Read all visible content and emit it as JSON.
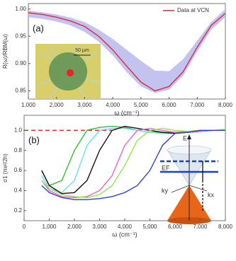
{
  "chart_data": [
    {
      "type": "line",
      "panel_label": "(a)",
      "x_label": "ω (cm⁻¹)",
      "y_label": "R(ω)/RBM(ω)",
      "inset_scale_label": "50 μm",
      "legend": "upper right",
      "x": [
        1000,
        1500,
        2000,
        2500,
        3000,
        3500,
        4000,
        4500,
        5000,
        5500,
        6000,
        6500,
        7000,
        7500,
        8000
      ],
      "series": [
        {
          "name": "Data at VCN",
          "color": "#d9283c",
          "values": [
            0.993,
            0.99,
            0.985,
            0.978,
            0.968,
            0.95,
            0.925,
            0.895,
            0.866,
            0.85,
            0.858,
            0.885,
            0.93,
            0.97,
            0.992
          ]
        }
      ],
      "band": {
        "color": "#b9b9ec",
        "upper": [
          0.997,
          0.994,
          0.99,
          0.984,
          0.976,
          0.962,
          0.945,
          0.925,
          0.905,
          0.887,
          0.886,
          0.908,
          0.942,
          0.976,
          1.0
        ],
        "lower": [
          0.985,
          0.982,
          0.977,
          0.97,
          0.958,
          0.94,
          0.915,
          0.884,
          0.858,
          0.846,
          0.852,
          0.878,
          0.922,
          0.962,
          0.985
        ]
      },
      "xlim": [
        1000,
        8000
      ],
      "ylim": [
        0.835,
        1.01
      ],
      "xticks": [
        {
          "value": 1000,
          "label": "1,000"
        },
        {
          "value": 2000,
          "label": "2,000"
        },
        {
          "value": 3000,
          "label": "3,000"
        },
        {
          "value": 4000,
          "label": "4,000"
        },
        {
          "value": 5000,
          "label": "5,000"
        },
        {
          "value": 6000,
          "label": "6,000"
        },
        {
          "value": 7000,
          "label": "7,000"
        },
        {
          "value": 8000,
          "label": "8,000"
        }
      ],
      "yticks": [
        {
          "value": 0.85,
          "label": "0.85"
        },
        {
          "value": 0.9,
          "label": "0.90"
        },
        {
          "value": 0.95,
          "label": "0.95"
        },
        {
          "value": 1.0,
          "label": "1.00"
        }
      ]
    },
    {
      "type": "line",
      "panel_label": "(b)",
      "x_label": "ω (cm⁻¹)",
      "y_label": "σ1 (πe²/2h)",
      "inset_labels": {
        "energy": "E",
        "fermi": "EF",
        "ky": "ky",
        "kx": "kx"
      },
      "reference": {
        "value": 1.0,
        "x_range": [
          0,
          3500
        ],
        "color": "#e8332f"
      },
      "x": [
        700,
        1000,
        1500,
        2000,
        2500,
        3000,
        3500,
        4000,
        4500,
        5000,
        5500,
        6000,
        6500,
        7000,
        7500,
        8000
      ],
      "series": [
        {
          "color": "#2fbf2f",
          "values": [
            0.6,
            0.45,
            0.5,
            0.8,
            1.0,
            1.03,
            1.04,
            1.03,
            1.0,
            0.98,
            0.98,
            0.98,
            0.99,
            1.0,
            1.0,
            1.0
          ]
        },
        {
          "color": "#5fe0f5",
          "values": [
            0.55,
            0.42,
            0.38,
            0.5,
            0.85,
            1.0,
            1.02,
            1.02,
            1.0,
            0.98,
            0.97,
            0.97,
            0.98,
            0.99,
            1.0,
            1.0
          ]
        },
        {
          "color": "#111111",
          "values": [
            0.6,
            0.45,
            0.37,
            0.38,
            0.5,
            0.8,
            1.0,
            1.04,
            1.02,
            1.0,
            0.98,
            0.97,
            0.98,
            0.99,
            1.0,
            1.0
          ]
        },
        {
          "color": "#f060c8",
          "values": [
            0.5,
            0.4,
            0.34,
            0.33,
            0.34,
            0.4,
            0.55,
            0.85,
            1.0,
            1.02,
            1.0,
            0.98,
            0.98,
            0.99,
            1.0,
            1.0
          ]
        },
        {
          "color": "#8fe84a",
          "values": [
            0.5,
            0.42,
            0.36,
            0.34,
            0.33,
            0.36,
            0.45,
            0.65,
            0.9,
            1.0,
            1.02,
            1.0,
            0.99,
            1.0,
            1.0,
            1.01
          ]
        },
        {
          "color": "#3040d0",
          "values": [
            0.45,
            0.38,
            0.33,
            0.31,
            0.31,
            0.32,
            0.34,
            0.38,
            0.45,
            0.6,
            0.85,
            0.97,
            0.98,
            1.0,
            1.0,
            1.0
          ]
        }
      ],
      "xlim": [
        0,
        8000
      ],
      "ylim": [
        0.1,
        1.15
      ],
      "xticks": [
        0,
        {
          "value": 1000,
          "label": "1,000"
        },
        {
          "value": 2000,
          "label": "2,000"
        },
        {
          "value": 3000,
          "label": "3,000"
        },
        {
          "value": 4000,
          "label": "4,000"
        },
        {
          "value": 5000,
          "label": "5,000"
        },
        {
          "value": 6000,
          "label": "6,000"
        },
        {
          "value": 7000,
          "label": "7,000"
        },
        {
          "value": 8000,
          "label": "8,000"
        }
      ],
      "yticks": [
        0.2,
        0.4,
        0.6,
        0.8,
        {
          "value": 1.0,
          "label": "1.0"
        }
      ]
    }
  ]
}
